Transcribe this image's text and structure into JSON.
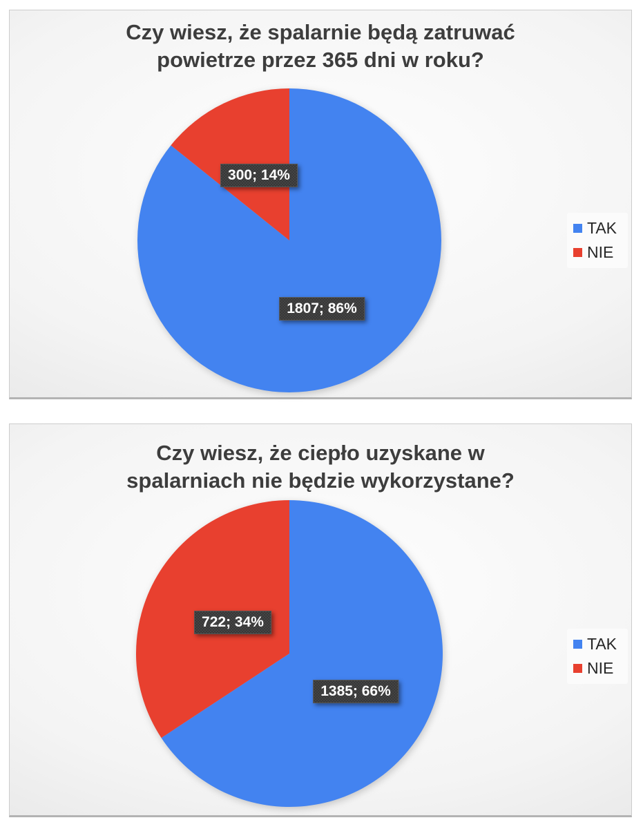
{
  "chart_data": [
    {
      "type": "pie",
      "title": "Czy wiesz, że spalarnie będą zatruwać powietrze przez 365 dni w roku?",
      "title_lines": [
        "Czy wiesz, że spalarnie będą zatruwać",
        "powietrze przez 365 dni w roku?"
      ],
      "categories": [
        "TAK",
        "NIE"
      ],
      "values": [
        1807,
        300
      ],
      "percents": [
        86,
        14
      ],
      "data_labels": [
        "1807; 86%",
        "300; 14%"
      ],
      "slice_colors": [
        "#4383f0",
        "#e8402f"
      ],
      "start_angle": "12-oclock",
      "direction": "clockwise",
      "legend_position": "right"
    },
    {
      "type": "pie",
      "title": "Czy wiesz, że ciepło uzyskane w spalarniach nie będzie wykorzystane?",
      "title_lines": [
        "Czy wiesz, że ciepło uzyskane w",
        "spalarniach nie będzie wykorzystane?"
      ],
      "categories": [
        "TAK",
        "NIE"
      ],
      "values": [
        1385,
        722
      ],
      "percents": [
        66,
        34
      ],
      "data_labels": [
        "1385; 66%",
        "722; 34%"
      ],
      "slice_colors": [
        "#4383f0",
        "#e8402f"
      ],
      "start_angle": "12-oclock",
      "direction": "clockwise",
      "legend_position": "right"
    }
  ],
  "theme": {
    "tak_blue": "#4383f0",
    "nie_red": "#e8402f",
    "title_color": "#3d3d3d",
    "label_box_bg": "#373737",
    "label_text": "#ffffff",
    "legend_text": "#262626"
  }
}
